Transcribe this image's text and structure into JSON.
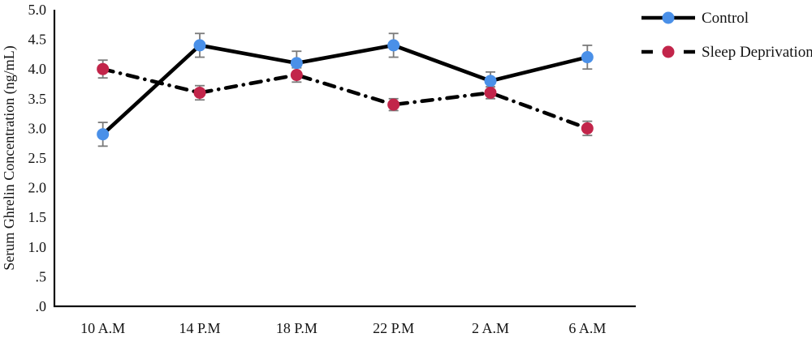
{
  "chart_data": {
    "type": "line",
    "title": "",
    "xlabel": "",
    "ylabel": "Serum Ghrelin  Concentration (ng/mL)",
    "categories": [
      "10 A.M",
      "14 P.M",
      "18 P.M",
      "22 P.M",
      "2 A.M",
      "6 A.M"
    ],
    "series": [
      {
        "name": "Control",
        "values": [
          2.9,
          4.4,
          4.1,
          4.4,
          3.8,
          4.2
        ],
        "errors": [
          0.2,
          0.2,
          0.2,
          0.2,
          0.15,
          0.2
        ],
        "line_style": "solid",
        "line_color": "#000000",
        "marker_color": "#4A90E8",
        "marker": "circle"
      },
      {
        "name": "Sleep Deprivation",
        "values": [
          4.0,
          3.6,
          3.9,
          3.4,
          3.6,
          3.0
        ],
        "errors": [
          0.15,
          0.12,
          0.12,
          0.1,
          0.1,
          0.12
        ],
        "line_style": "dash-dot",
        "line_color": "#000000",
        "marker_color": "#C2254A",
        "marker": "circle"
      }
    ],
    "ylim": [
      0,
      5
    ],
    "ytick_step": 0.5,
    "ytick_labels": [
      ".0",
      ".5",
      "1.0",
      "1.5",
      "2.0",
      "2.5",
      "3.0",
      "3.5",
      "4.0",
      "4.5",
      "5.0"
    ],
    "error_bar_color": "#7a7a7a",
    "axis_color": "#111111",
    "text_color": "#141414",
    "grid": false,
    "legend_position": "top-right-outside"
  }
}
